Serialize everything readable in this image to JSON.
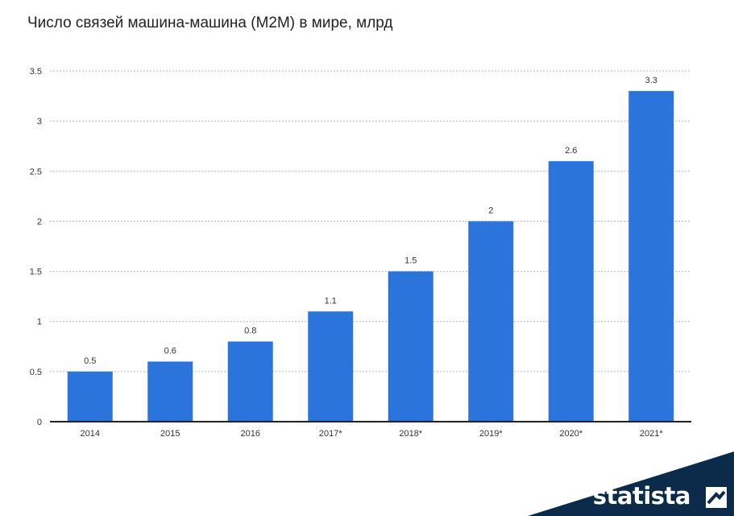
{
  "title": "Число связей машина-машина (M2M) в мире, млрд",
  "brand": {
    "name": "statista",
    "bg_color": "#0c2a4a"
  },
  "chart_data": {
    "type": "bar",
    "title": "Число связей машина-машина (M2M) в мире, млрд",
    "categories": [
      "2014",
      "2015",
      "2016",
      "2017*",
      "2018*",
      "2019*",
      "2020*",
      "2021*"
    ],
    "values": [
      0.5,
      0.6,
      0.8,
      1.1,
      1.5,
      2,
      2.6,
      3.3
    ],
    "data_labels": [
      "0.5",
      "0.6",
      "0.8",
      "1.1",
      "1.5",
      "2",
      "2.6",
      "3.3"
    ],
    "yticks": [
      "0",
      "0.5",
      "1",
      "1.5",
      "2",
      "2.5",
      "3",
      "3.5"
    ],
    "ylim": [
      0,
      3.5
    ],
    "grid": true,
    "bar_color": "#2b74db",
    "xlabel": "",
    "ylabel": ""
  }
}
